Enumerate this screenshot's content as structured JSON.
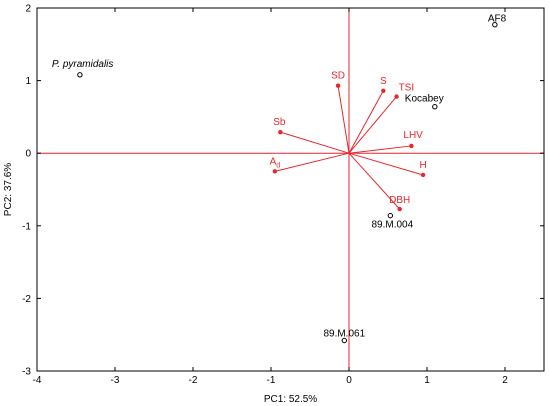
{
  "colors": {
    "loading": "#e8262b",
    "frame": "#000000",
    "point": "#000000"
  },
  "chart_data": {
    "type": "scatter",
    "title": "",
    "xlabel": "PC1: 52.5%",
    "ylabel": "PC2: 37.6%",
    "xlim": [
      -4,
      2.5
    ],
    "ylim": [
      -3,
      2
    ],
    "xticks": [
      -4,
      -3,
      -2,
      -1,
      0,
      1,
      2
    ],
    "yticks": [
      -3,
      -2,
      -1,
      0,
      1,
      2
    ],
    "x_tick_labels": [
      "-4",
      "-3",
      "-2",
      "-1",
      "0",
      "1",
      "2"
    ],
    "y_tick_labels": [
      "-3",
      "-2",
      "-1",
      "0",
      "1",
      "2"
    ],
    "grid": false,
    "origin_lines": true,
    "observations": [
      {
        "label": "P. pyramidalis",
        "italic": true,
        "x": -3.45,
        "y": 1.08
      },
      {
        "label": "AF8",
        "italic": false,
        "x": 1.87,
        "y": 1.77
      },
      {
        "label": "Kocabey",
        "italic": false,
        "x": 1.1,
        "y": 0.64
      },
      {
        "label": "89.M.004",
        "italic": false,
        "x": 0.53,
        "y": -0.86
      },
      {
        "label": "89.M.061",
        "italic": false,
        "x": -0.06,
        "y": -2.58
      }
    ],
    "variables": [
      {
        "label": "SD",
        "sub": "",
        "x": -0.14,
        "y": 0.93
      },
      {
        "label": "S",
        "sub": "",
        "x": 0.44,
        "y": 0.86
      },
      {
        "label": "TSI",
        "sub": "",
        "x": 0.61,
        "y": 0.78
      },
      {
        "label": "Sb",
        "sub": "",
        "x": -0.88,
        "y": 0.29
      },
      {
        "label": "LHV",
        "sub": "",
        "x": 0.8,
        "y": 0.1
      },
      {
        "label": "A",
        "sub": "d",
        "x": -0.95,
        "y": -0.25
      },
      {
        "label": "H",
        "sub": "",
        "x": 0.95,
        "y": -0.3
      },
      {
        "label": "DBH",
        "sub": "",
        "x": 0.65,
        "y": -0.77
      }
    ]
  }
}
